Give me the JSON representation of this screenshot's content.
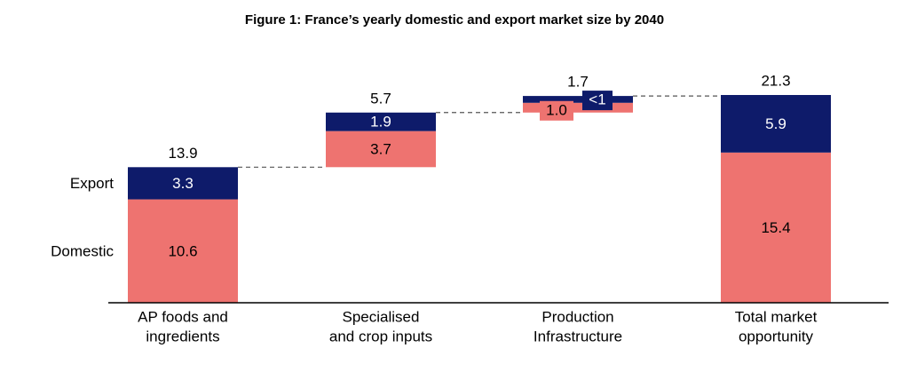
{
  "colors": {
    "domestic": "#ee7370",
    "export": "#0e1b6a",
    "axis": "#000000",
    "connector": "#555555"
  },
  "chart_data": {
    "type": "bar",
    "subtype": "stacked-waterfall",
    "title": "Figure 1: France’s yearly domestic and export market size by 2040",
    "categories": [
      [
        "AP foods and",
        "ingredients"
      ],
      [
        "Specialised",
        "and crop inputs"
      ],
      [
        "Production",
        "Infrastructure"
      ],
      [
        "Total market",
        "opportunity"
      ]
    ],
    "legend": [
      "Export",
      "Domestic"
    ],
    "series": [
      {
        "name": "Domestic",
        "values": [
          10.6,
          3.7,
          1.0,
          15.4
        ],
        "labels": [
          "10.6",
          "3.7",
          "1.0",
          "15.4"
        ]
      },
      {
        "name": "Export",
        "values": [
          3.3,
          1.9,
          0.7,
          5.9
        ],
        "labels": [
          "3.3",
          "1.9",
          "<1",
          "5.9"
        ]
      }
    ],
    "totals": [
      "13.9",
      "5.7",
      "1.7",
      "21.3"
    ],
    "ylim": [
      0,
      21.3
    ],
    "xlabel": "",
    "ylabel": ""
  }
}
